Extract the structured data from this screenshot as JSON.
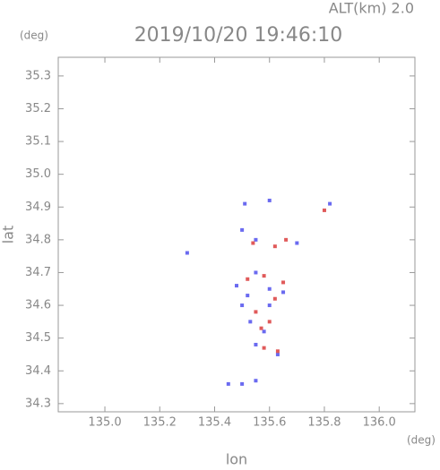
{
  "chart_data": {
    "type": "scatter",
    "title": "2019/10/20 19:46:10",
    "subtitle": "ALT(km) 2.0",
    "x_label": "lon",
    "y_label": "lat",
    "x_unit": "(deg)",
    "y_unit": "(deg)",
    "xlim": [
      134.83,
      136.13
    ],
    "ylim": [
      34.275,
      35.357
    ],
    "xticks": [
      {
        "value": 135.0,
        "label": "135.0"
      },
      135.2,
      135.4,
      135.6,
      135.8,
      {
        "value": 136.0,
        "label": "136.0"
      }
    ],
    "yticks": [
      34.3,
      34.4,
      34.5,
      34.6,
      34.7,
      34.8,
      34.9,
      {
        "value": 35.0,
        "label": "35.0"
      },
      35.1,
      35.2,
      35.3
    ],
    "series": [
      {
        "color": "#6a6af0",
        "x": [
          135.3,
          135.82,
          135.51,
          135.6,
          135.5,
          135.55,
          135.7,
          135.48,
          135.55,
          135.5,
          135.6,
          135.65,
          135.53,
          135.58,
          135.55,
          135.63,
          135.5,
          135.45,
          135.55,
          135.6,
          135.52
        ],
        "y": [
          34.76,
          34.91,
          34.91,
          34.92,
          34.83,
          34.8,
          34.79,
          34.66,
          34.7,
          34.6,
          34.65,
          34.64,
          34.55,
          34.52,
          34.48,
          34.45,
          34.36,
          34.36,
          34.37,
          34.6,
          34.63
        ]
      },
      {
        "color": "#e05a5a",
        "x": [
          135.8,
          135.54,
          135.62,
          135.66,
          135.58,
          135.65,
          135.62,
          135.55,
          135.6,
          135.58,
          135.63,
          135.52,
          135.57
        ],
        "y": [
          34.89,
          34.79,
          34.78,
          34.8,
          34.69,
          34.67,
          34.62,
          34.58,
          34.55,
          34.47,
          34.46,
          34.68,
          34.53
        ]
      }
    ]
  }
}
